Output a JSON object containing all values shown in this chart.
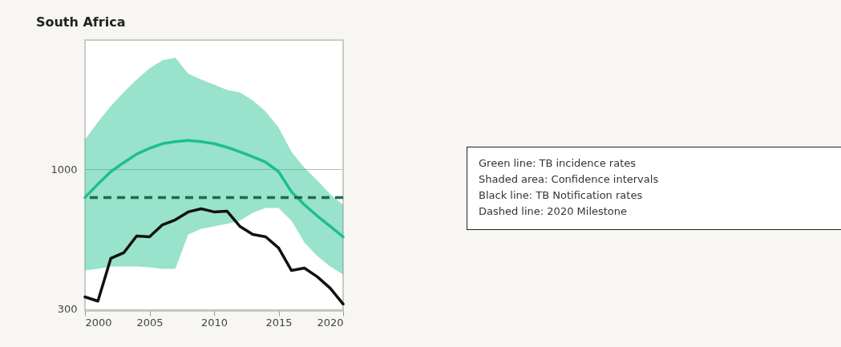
{
  "chart_data": {
    "type": "line",
    "title": "South Africa",
    "x": [
      2000,
      2001,
      2002,
      2003,
      2004,
      2005,
      2006,
      2007,
      2008,
      2009,
      2010,
      2011,
      2012,
      2013,
      2014,
      2015,
      2016,
      2017,
      2018,
      2019,
      2020
    ],
    "series": [
      {
        "color": "#1dbf8c",
        "values": [
          785,
          880,
          980,
          1060,
          1140,
          1200,
          1248,
          1270,
          1283,
          1270,
          1248,
          1210,
          1164,
          1115,
          1064,
          980,
          824,
          737,
          669,
          612,
          559
        ],
        "lower": [
          418,
          424,
          433,
          433,
          433,
          430,
          424,
          424,
          571,
          599,
          612,
          625,
          642,
          688,
          717,
          717,
          642,
          533,
          474,
          433,
          404
        ],
        "upper": [
          1292,
          1503,
          1727,
          1943,
          2170,
          2390,
          2560,
          2620,
          2280,
          2170,
          2080,
          1983,
          1943,
          1813,
          1646,
          1433,
          1164,
          1014,
          908,
          807,
          737
        ]
      },
      {
        "color": "#111111",
        "values": [
          333,
          321,
          464,
          487,
          563,
          559,
          620,
          647,
          693,
          712,
          693,
          698,
          612,
          571,
          559,
          508,
          418,
          427,
          396,
          359,
          313
        ]
      }
    ],
    "xlim": [
      2000,
      2020
    ],
    "xticks": [
      2000,
      2005,
      2010,
      2015,
      2020
    ],
    "ylim": [
      295,
      3050
    ],
    "yticks": [
      300,
      1000
    ],
    "log": true,
    "grid": "y",
    "ref_lines": [
      {
        "axis": "y",
        "value": 785,
        "color": "#1e6b4f",
        "line_style": "dashed"
      }
    ],
    "annotations": [
      "Green line: TB incidence rates",
      "Shaded area: Confidence intervals",
      "Black line: TB Notification rates",
      "Dashed line: 2020 Milestone"
    ]
  }
}
